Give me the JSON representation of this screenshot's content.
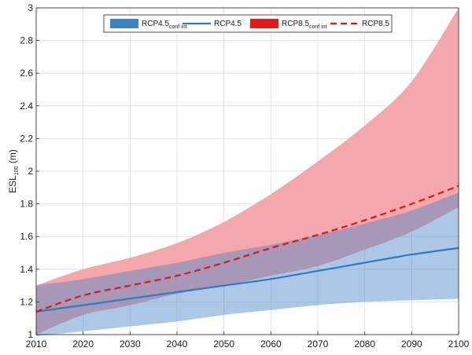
{
  "chart_data": {
    "type": "area",
    "xlim": [
      2010,
      2100
    ],
    "ylim": [
      1,
      3
    ],
    "x_ticks": [
      "2010",
      "2020",
      "2030",
      "2040",
      "2050",
      "2060",
      "2070",
      "2080",
      "2090",
      "2100"
    ],
    "y_ticks": [
      "1",
      "1.2",
      "1.4",
      "1.6",
      "1.8",
      "2",
      "2.2",
      "2.4",
      "2.6",
      "2.8",
      "3"
    ],
    "ylabel": {
      "main": "ESL",
      "sub": "100",
      "unit": " (m)"
    },
    "grid": true,
    "legend_position": "top-center",
    "x": [
      2010,
      2020,
      2030,
      2040,
      2050,
      2060,
      2070,
      2080,
      2090,
      2100
    ],
    "series": [
      {
        "name": "RCP8.5",
        "subscript": "conf int",
        "style": "band",
        "color": "#f4a3a6",
        "lower": [
          1.0,
          1.12,
          1.18,
          1.25,
          1.3,
          1.36,
          1.42,
          1.52,
          1.63,
          1.78
        ],
        "upper": [
          1.3,
          1.4,
          1.47,
          1.56,
          1.69,
          1.86,
          2.06,
          2.28,
          2.55,
          3.0
        ]
      },
      {
        "name": "RCP4.5",
        "subscript": "conf int",
        "style": "band",
        "color": "#4a86c8",
        "lower": [
          0.99,
          1.02,
          1.05,
          1.08,
          1.12,
          1.15,
          1.18,
          1.2,
          1.21,
          1.22
        ],
        "upper": [
          1.3,
          1.34,
          1.39,
          1.44,
          1.5,
          1.55,
          1.61,
          1.68,
          1.76,
          1.87
        ]
      },
      {
        "name": "RCP4.5",
        "style": "solid",
        "color": "#2f7bbf",
        "values": [
          1.14,
          1.18,
          1.22,
          1.26,
          1.3,
          1.34,
          1.39,
          1.44,
          1.49,
          1.53
        ]
      },
      {
        "name": "RCP8.5",
        "style": "dashed",
        "color": "#e0141c",
        "values": [
          1.14,
          1.24,
          1.3,
          1.36,
          1.44,
          1.53,
          1.61,
          1.7,
          1.8,
          1.91
        ]
      }
    ],
    "legend": [
      {
        "label": "RCP4.5",
        "sub": "conf int",
        "kind": "patch",
        "color": "#3f82c3"
      },
      {
        "label": "RCP4.5",
        "sub": "",
        "kind": "line",
        "color": "#2f7bbf"
      },
      {
        "label": "RCP8.5",
        "sub": "conf int",
        "kind": "patch",
        "color": "#e31a1c"
      },
      {
        "label": "RCP8.5",
        "sub": "",
        "kind": "dash",
        "color": "#e0141c"
      }
    ]
  }
}
